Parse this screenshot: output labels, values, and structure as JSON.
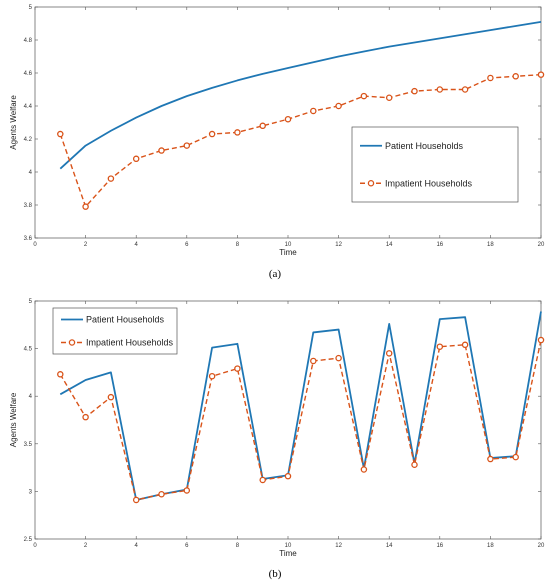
{
  "chart_data": [
    {
      "type": "line",
      "caption": "(a)",
      "xlabel": "Time",
      "ylabel": "Agents Welfare",
      "xlim": [
        0,
        20
      ],
      "ylim": [
        3.6,
        5.0
      ],
      "xticks": [
        0,
        2,
        4,
        6,
        8,
        10,
        12,
        14,
        16,
        18,
        20
      ],
      "yticks": [
        3.6,
        3.8,
        4,
        4.2,
        4.4,
        4.6,
        4.8,
        5
      ],
      "grid": false,
      "legend_position": "right",
      "x": [
        1,
        2,
        3,
        4,
        5,
        6,
        7,
        8,
        9,
        10,
        11,
        12,
        13,
        14,
        15,
        16,
        17,
        18,
        19,
        20
      ],
      "series": [
        {
          "name": "Patient Households",
          "color": "#1f77b4",
          "style": "solid",
          "values": [
            4.02,
            4.16,
            4.25,
            4.33,
            4.4,
            4.46,
            4.51,
            4.555,
            4.595,
            4.63,
            4.665,
            4.7,
            4.73,
            4.76,
            4.785,
            4.81,
            4.835,
            4.86,
            4.885,
            4.91
          ]
        },
        {
          "name": "Impatient Households",
          "color": "#d95319",
          "style": "dashed-markers",
          "values": [
            4.23,
            3.79,
            3.96,
            4.08,
            4.13,
            4.16,
            4.23,
            4.24,
            4.28,
            4.32,
            4.37,
            4.4,
            4.46,
            4.45,
            4.49,
            4.5,
            4.5,
            4.57,
            4.58,
            4.59
          ]
        }
      ]
    },
    {
      "type": "line",
      "caption": "(b)",
      "xlabel": "Time",
      "ylabel": "Agents Welfare",
      "xlim": [
        0,
        20
      ],
      "ylim": [
        2.5,
        5.0
      ],
      "xticks": [
        0,
        2,
        4,
        6,
        8,
        10,
        12,
        14,
        16,
        18,
        20
      ],
      "yticks": [
        2.5,
        3,
        3.5,
        4,
        4.5,
        5
      ],
      "grid": false,
      "legend_position": "top-left",
      "x": [
        1,
        2,
        3,
        4,
        5,
        6,
        7,
        8,
        9,
        10,
        11,
        12,
        13,
        14,
        15,
        16,
        17,
        18,
        19,
        20
      ],
      "series": [
        {
          "name": "Patient Households",
          "color": "#1f77b4",
          "style": "solid",
          "values": [
            4.02,
            4.17,
            4.25,
            2.91,
            2.97,
            3.02,
            4.51,
            4.55,
            3.13,
            3.17,
            4.67,
            4.7,
            3.24,
            4.76,
            3.29,
            4.81,
            4.83,
            3.35,
            3.37,
            4.89
          ]
        },
        {
          "name": "Impatient Households",
          "color": "#d95319",
          "style": "dashed-markers",
          "values": [
            4.23,
            3.78,
            3.99,
            2.91,
            2.97,
            3.01,
            4.21,
            4.29,
            3.12,
            3.16,
            4.37,
            4.4,
            3.23,
            4.45,
            3.28,
            4.52,
            4.54,
            3.34,
            3.36,
            4.59
          ]
        }
      ]
    }
  ]
}
